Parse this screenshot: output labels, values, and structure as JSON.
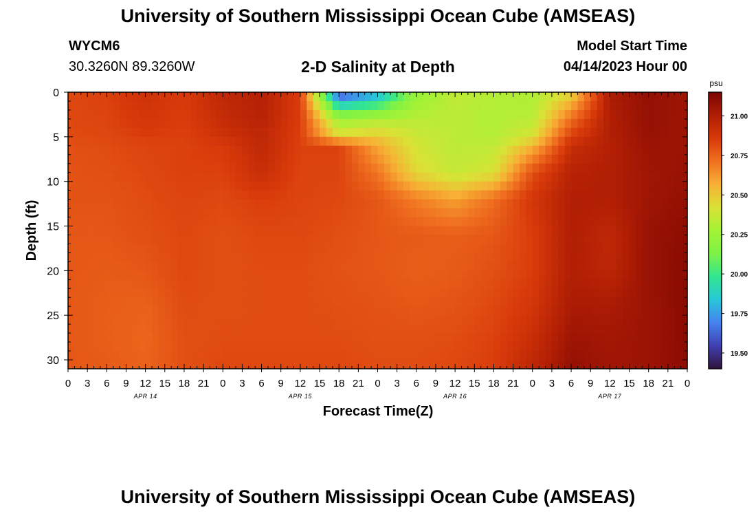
{
  "header": {
    "title": "University of Southern Mississippi Ocean Cube (AMSEAS)",
    "station_id": "WYCM6",
    "station_coords": "30.3260N  89.3260W",
    "subtitle": "2-D Salinity at Depth",
    "start_label": "Model Start Time",
    "start_date": "04/14/2023 Hour 00"
  },
  "footer": {
    "title": "University of Southern Mississippi Ocean Cube (AMSEAS)"
  },
  "chart_data": {
    "type": "heatmap",
    "title": "2-D Salinity at Depth",
    "xlabel": "Forecast Time(Z)",
    "ylabel": "Depth (ft)",
    "x_tick_labels": [
      "0",
      "3",
      "6",
      "9",
      "12",
      "15",
      "18",
      "21",
      "0",
      "3",
      "6",
      "9",
      "12",
      "15",
      "18",
      "21",
      "0",
      "3",
      "6",
      "9",
      "12",
      "15",
      "18",
      "21",
      "0",
      "3",
      "6",
      "9",
      "12",
      "15",
      "18",
      "21",
      "0"
    ],
    "x_date_labels": [
      {
        "label": "APR 14",
        "hour": 12
      },
      {
        "label": "APR 15",
        "hour": 36
      },
      {
        "label": "APR 16",
        "hour": 60
      },
      {
        "label": "APR 17",
        "hour": 84
      }
    ],
    "xlim_hours": [
      0,
      96
    ],
    "y_ticks": [
      0,
      5,
      10,
      15,
      20,
      25,
      30
    ],
    "ylim": [
      0,
      31
    ],
    "y_inverted": true,
    "colorbar": {
      "unit": "psu",
      "range": [
        19.4,
        21.15
      ],
      "ticks": [
        "21.00",
        "20.75",
        "20.50",
        "20.25",
        "20.00",
        "19.75",
        "19.50"
      ],
      "tick_values": [
        21.0,
        20.75,
        20.5,
        20.25,
        20.0,
        19.75,
        19.5
      ],
      "colors": [
        "#30123b",
        "#4040b0",
        "#4682f0",
        "#28c8d8",
        "#32e690",
        "#7ef246",
        "#a4f236",
        "#dae236",
        "#f7b035",
        "#f07020",
        "#d83a0a",
        "#b01e04",
        "#7a0403"
      ]
    },
    "depths_ft": [
      0,
      3,
      5,
      6,
      9,
      12,
      16,
      20,
      24,
      28,
      31
    ],
    "hours": [
      0,
      6,
      12,
      18,
      24,
      30,
      36,
      42,
      48,
      54,
      60,
      66,
      72,
      78,
      84,
      90,
      96
    ],
    "values": [
      [
        20.82,
        20.84,
        20.9,
        20.86,
        20.95,
        20.99,
        20.85,
        19.55,
        19.75,
        20.22,
        20.35,
        20.32,
        20.3,
        20.45,
        21.02,
        21.08,
        21.05
      ],
      [
        20.82,
        20.83,
        20.88,
        20.85,
        20.93,
        20.98,
        20.85,
        20.25,
        20.3,
        20.33,
        20.34,
        20.31,
        20.33,
        20.72,
        21.0,
        21.08,
        21.05
      ],
      [
        20.81,
        20.82,
        20.85,
        20.84,
        20.9,
        20.95,
        20.84,
        20.45,
        20.5,
        20.38,
        20.34,
        20.32,
        20.42,
        20.85,
        21.0,
        21.07,
        21.05
      ],
      [
        20.8,
        20.81,
        20.83,
        20.84,
        20.86,
        20.95,
        20.84,
        20.84,
        20.58,
        20.4,
        20.34,
        20.35,
        20.55,
        20.92,
        20.99,
        21.06,
        21.06
      ],
      [
        20.79,
        20.8,
        20.82,
        20.84,
        20.84,
        20.92,
        20.83,
        20.83,
        20.7,
        20.45,
        20.36,
        20.42,
        20.8,
        20.98,
        21.0,
        21.05,
        21.07
      ],
      [
        20.79,
        20.79,
        20.81,
        20.83,
        20.82,
        20.85,
        20.83,
        20.82,
        20.78,
        20.68,
        20.6,
        20.72,
        20.88,
        21.0,
        21.0,
        21.05,
        21.08
      ],
      [
        20.78,
        20.78,
        20.8,
        20.82,
        20.8,
        20.82,
        20.82,
        20.8,
        20.78,
        20.77,
        20.76,
        20.78,
        20.85,
        21.0,
        20.95,
        21.07,
        21.1
      ],
      [
        20.78,
        20.77,
        20.78,
        20.82,
        20.8,
        20.81,
        20.81,
        20.79,
        20.78,
        20.76,
        20.77,
        20.8,
        20.85,
        21.0,
        20.96,
        21.07,
        21.11
      ],
      [
        20.78,
        20.76,
        20.75,
        20.81,
        20.8,
        20.81,
        20.81,
        20.8,
        20.79,
        20.78,
        20.79,
        20.82,
        20.88,
        21.02,
        21.02,
        21.06,
        21.11
      ],
      [
        20.78,
        20.76,
        20.74,
        20.8,
        20.81,
        20.81,
        20.81,
        20.81,
        20.8,
        20.8,
        20.81,
        20.84,
        20.92,
        21.06,
        21.04,
        21.06,
        21.11
      ],
      [
        20.78,
        20.77,
        20.75,
        20.8,
        20.82,
        20.82,
        20.82,
        20.82,
        20.81,
        20.81,
        20.82,
        20.85,
        20.96,
        21.08,
        21.05,
        21.06,
        21.1
      ]
    ]
  }
}
